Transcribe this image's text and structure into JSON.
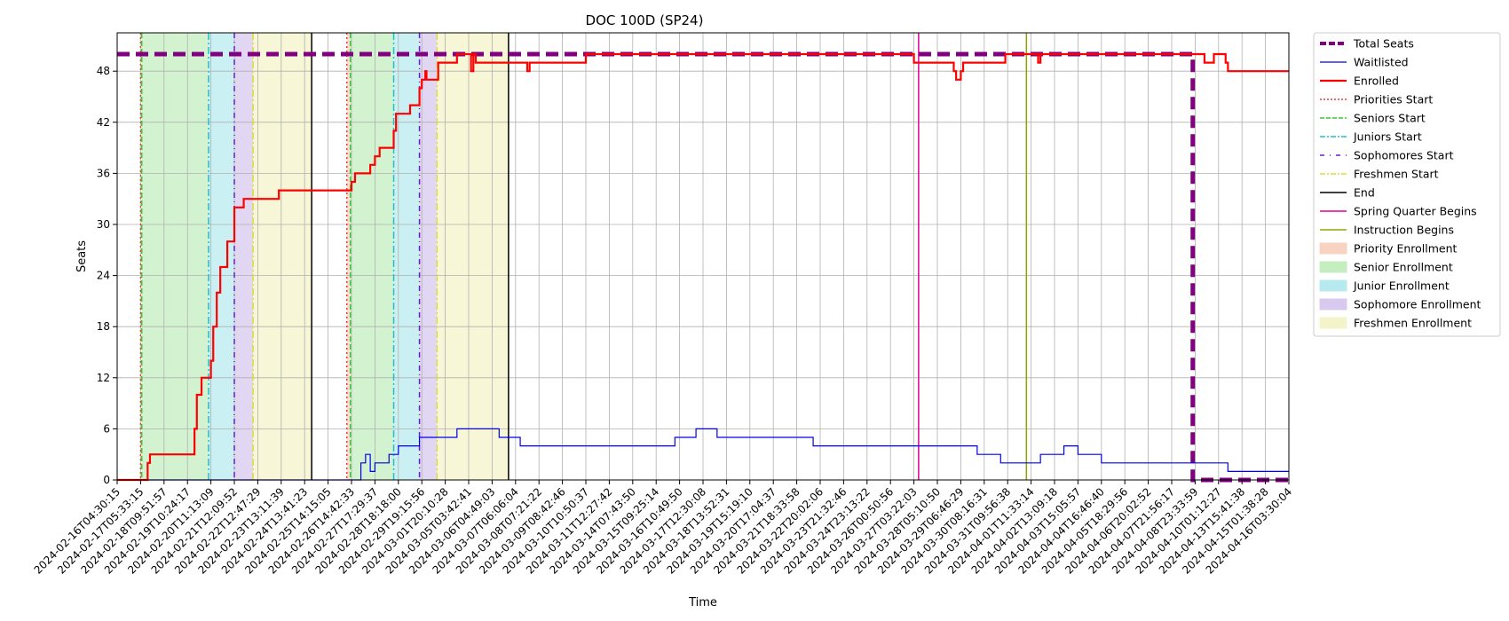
{
  "chart_data": {
    "type": "line",
    "title": "DOC 100D (SP24)",
    "xlabel": "Time",
    "ylabel": "Seats",
    "ylim": [
      0,
      52.5
    ],
    "yticks": [
      0,
      6,
      12,
      18,
      24,
      30,
      36,
      42,
      48
    ],
    "grid": true,
    "legend_placement": "outside-top-right",
    "x_tick_labels": [
      "2024-02-16T04:30:15",
      "2024-02-17T05:33:15",
      "2024-02-18T09:51:57",
      "2024-02-19T10:24:17",
      "2024-02-20T11:13:09",
      "2024-02-21T12:09:52",
      "2024-02-22T12:47:29",
      "2024-02-23T13:11:39",
      "2024-02-24T13:41:23",
      "2024-02-25T14:15:05",
      "2024-02-26T14:42:33",
      "2024-02-27T17:29:37",
      "2024-02-28T18:18:00",
      "2024-02-29T19:15:56",
      "2024-03-01T20:10:28",
      "2024-03-05T03:42:41",
      "2024-03-06T04:49:03",
      "2024-03-07T06:06:04",
      "2024-03-08T07:21:22",
      "2024-03-09T08:42:46",
      "2024-03-10T10:50:37",
      "2024-03-11T12:27:42",
      "2024-03-14T07:43:50",
      "2024-03-15T09:25:14",
      "2024-03-16T10:49:50",
      "2024-03-17T12:30:08",
      "2024-03-18T13:52:31",
      "2024-03-19T15:19:10",
      "2024-03-20T17:04:37",
      "2024-03-21T18:33:58",
      "2024-03-22T20:02:06",
      "2024-03-23T21:32:46",
      "2024-03-24T23:13:22",
      "2024-03-26T00:50:56",
      "2024-03-27T03:22:03",
      "2024-03-28T05:10:50",
      "2024-03-29T06:46:29",
      "2024-03-30T08:16:31",
      "2024-03-31T09:56:38",
      "2024-04-01T11:33:14",
      "2024-04-02T13:09:18",
      "2024-04-03T15:05:57",
      "2024-04-04T16:46:40",
      "2024-04-05T18:29:56",
      "2024-04-06T20:02:52",
      "2024-04-07T21:56:17",
      "2024-04-08T23:33:59",
      "2024-04-10T01:12:27",
      "2024-04-13T15:41:38",
      "2024-04-15T01:38:28",
      "2024-04-16T03:30:04"
    ],
    "x_range": [
      0,
      50
    ],
    "shaded_regions": [
      {
        "name": "Senior Enrollment",
        "from": 1.05,
        "to": 3.9,
        "color": "#b6ebb0"
      },
      {
        "name": "Junior Enrollment",
        "from": 3.9,
        "to": 5.0,
        "color": "#a6e6ec"
      },
      {
        "name": "Sophomore Enrollment",
        "from": 5.0,
        "to": 5.8,
        "color": "#cfbceb"
      },
      {
        "name": "Freshmen Enrollment",
        "from": 5.8,
        "to": 8.3,
        "color": "#f2f2bd"
      },
      {
        "name": "Priority Enrollment",
        "from": 9.8,
        "to": 9.95,
        "color": "#f7c9b4"
      },
      {
        "name": "Senior Enrollment",
        "from": 9.95,
        "to": 11.8,
        "color": "#b6ebb0"
      },
      {
        "name": "Junior Enrollment",
        "from": 11.8,
        "to": 12.9,
        "color": "#a6e6ec"
      },
      {
        "name": "Sophomore Enrollment",
        "from": 12.9,
        "to": 13.65,
        "color": "#cfbceb"
      },
      {
        "name": "Freshmen Enrollment",
        "from": 13.65,
        "to": 16.7,
        "color": "#f2f2bd"
      }
    ],
    "vertical_markers": [
      {
        "name": "Priorities Start",
        "x": 1.0,
        "color": "#ff3333",
        "dash": "2,3"
      },
      {
        "name": "Seniors Start",
        "x": 1.05,
        "color": "#33cc33",
        "dash": "6,3"
      },
      {
        "name": "Juniors Start",
        "x": 3.9,
        "color": "#20c0c8",
        "dash": "8,3,2,3"
      },
      {
        "name": "Sophomores Start",
        "x": 5.0,
        "color": "#6a1ad4",
        "dash": "6,4,1,4"
      },
      {
        "name": "Freshmen Start",
        "x": 5.8,
        "color": "#dddd33",
        "dash": "8,3,2,3"
      },
      {
        "name": "End",
        "x": 8.3,
        "color": "#000000",
        "dash": ""
      },
      {
        "name": "Priorities Start",
        "x": 9.8,
        "color": "#ff3333",
        "dash": "2,3"
      },
      {
        "name": "Seniors Start",
        "x": 9.95,
        "color": "#33cc33",
        "dash": "6,3"
      },
      {
        "name": "Juniors Start",
        "x": 11.8,
        "color": "#20c0c8",
        "dash": "8,3,2,3"
      },
      {
        "name": "Sophomores Start",
        "x": 12.9,
        "color": "#6a1ad4",
        "dash": "6,4,1,4"
      },
      {
        "name": "Freshmen Start",
        "x": 13.65,
        "color": "#dddd33",
        "dash": "8,3,2,3"
      },
      {
        "name": "End",
        "x": 16.7,
        "color": "#000000",
        "dash": ""
      },
      {
        "name": "Spring Quarter Begins",
        "x": 34.2,
        "color": "#dd0099",
        "dash": ""
      },
      {
        "name": "Instruction Begins",
        "x": 38.8,
        "color": "#88aa00",
        "dash": ""
      }
    ],
    "series": [
      {
        "name": "Total Seats",
        "color": "#800080",
        "style": "thick-dashed",
        "x": [
          0,
          45.9,
          45.9,
          50
        ],
        "y": [
          50,
          50,
          0,
          0
        ]
      },
      {
        "name": "Waitlisted",
        "color": "#0000ee",
        "style": "step",
        "x": [
          0,
          10.2,
          10.4,
          10.5,
          10.6,
          10.8,
          11.0,
          11.2,
          11.6,
          12.0,
          12.2,
          12.3,
          12.6,
          12.9,
          13.0,
          14.5,
          15.0,
          15.6,
          16.3,
          17.2,
          17.2,
          23.8,
          23.8,
          24.7,
          24.7,
          25.6,
          25.6,
          29.7,
          29.7,
          36.7,
          36.7,
          37.7,
          37.7,
          39.4,
          39.4,
          40.4,
          40.4,
          41.0,
          41.0,
          42.0,
          42.0,
          47.4,
          47.4,
          50
        ],
        "y": [
          0,
          0,
          2,
          2,
          3,
          1,
          2,
          2,
          3,
          4,
          4,
          4,
          4,
          5,
          5,
          6,
          6,
          6,
          5,
          5,
          4,
          4,
          5,
          5,
          6,
          6,
          5,
          5,
          4,
          4,
          3,
          3,
          2,
          2,
          3,
          3,
          4,
          4,
          3,
          3,
          2,
          2,
          1,
          1
        ]
      },
      {
        "name": "Enrolled",
        "color": "#ff0000",
        "style": "step",
        "x": [
          0,
          1.1,
          1.3,
          1.4,
          1.5,
          3.1,
          3.3,
          3.4,
          3.6,
          4.0,
          4.1,
          4.25,
          4.4,
          4.5,
          4.7,
          5.0,
          5.2,
          5.4,
          5.5,
          5.6,
          5.7,
          6.9,
          7.0,
          9.8,
          10.0,
          10.15,
          10.3,
          10.55,
          10.8,
          11.0,
          11.1,
          11.2,
          11.4,
          11.8,
          11.9,
          12.4,
          12.5,
          12.9,
          13.0,
          13.1,
          13.15,
          13.2,
          13.25,
          13.7,
          14.0,
          14.5,
          15.1,
          15.2,
          15.3,
          16.5,
          16.6,
          17.5,
          17.6,
          18.9,
          19.0,
          20.0,
          29.5,
          29.6,
          34.0,
          34.0,
          35.7,
          35.8,
          36.0,
          36.1,
          37.8,
          37.9,
          39.3,
          39.4,
          39.7,
          39.9,
          45.9,
          46.4,
          46.8,
          47.3,
          47.4,
          47.5,
          50
        ],
        "y": [
          0,
          0,
          2,
          3,
          3,
          3,
          6,
          10,
          12,
          14,
          18,
          22,
          25,
          25,
          28,
          32,
          32,
          33,
          33,
          33,
          33,
          34,
          34,
          34,
          35,
          36,
          36,
          36,
          37,
          38,
          38,
          39,
          39,
          41,
          43,
          43,
          44,
          46,
          47,
          47,
          48,
          47,
          47,
          49,
          49,
          50,
          48,
          50,
          49,
          49,
          49,
          48,
          49,
          49,
          49,
          50,
          50,
          50,
          50,
          49,
          48,
          47,
          48,
          49,
          49,
          50,
          49,
          50,
          50,
          50,
          50,
          49,
          50,
          49,
          48,
          48,
          48
        ]
      }
    ],
    "legend": [
      {
        "label": "Total Seats",
        "kind": "line",
        "color": "#800080",
        "dash": "7,3",
        "width": 4
      },
      {
        "label": "Waitlisted",
        "kind": "line",
        "color": "#0000ee",
        "dash": "",
        "width": 1.2
      },
      {
        "label": "Enrolled",
        "kind": "line",
        "color": "#ff0000",
        "dash": "",
        "width": 2.2
      },
      {
        "label": "Priorities Start",
        "kind": "line",
        "color": "#ff3333",
        "dash": "2,2",
        "width": 1.4
      },
      {
        "label": "Seniors Start",
        "kind": "line",
        "color": "#33cc33",
        "dash": "5,2",
        "width": 1.4
      },
      {
        "label": "Juniors Start",
        "kind": "line",
        "color": "#20c0c8",
        "dash": "6,2,2,2",
        "width": 1.4
      },
      {
        "label": "Sophomores Start",
        "kind": "line",
        "color": "#6a1ad4",
        "dash": "5,6,1,6",
        "width": 1.4
      },
      {
        "label": "Freshmen Start",
        "kind": "line",
        "color": "#dddd33",
        "dash": "6,2,2,2",
        "width": 1.4
      },
      {
        "label": "End",
        "kind": "line",
        "color": "#000000",
        "dash": "",
        "width": 1.4
      },
      {
        "label": "Spring Quarter Begins",
        "kind": "line",
        "color": "#dd0099",
        "dash": "",
        "width": 1.4
      },
      {
        "label": "Instruction Begins",
        "kind": "line",
        "color": "#88aa00",
        "dash": "",
        "width": 1.4
      },
      {
        "label": "Priority Enrollment",
        "kind": "patch",
        "color": "#f7c9b4"
      },
      {
        "label": "Senior Enrollment",
        "kind": "patch",
        "color": "#b6ebb0"
      },
      {
        "label": "Junior Enrollment",
        "kind": "patch",
        "color": "#a6e6ec"
      },
      {
        "label": "Sophomore Enrollment",
        "kind": "patch",
        "color": "#cfbceb"
      },
      {
        "label": "Freshmen Enrollment",
        "kind": "patch",
        "color": "#f2f2bd"
      }
    ]
  }
}
